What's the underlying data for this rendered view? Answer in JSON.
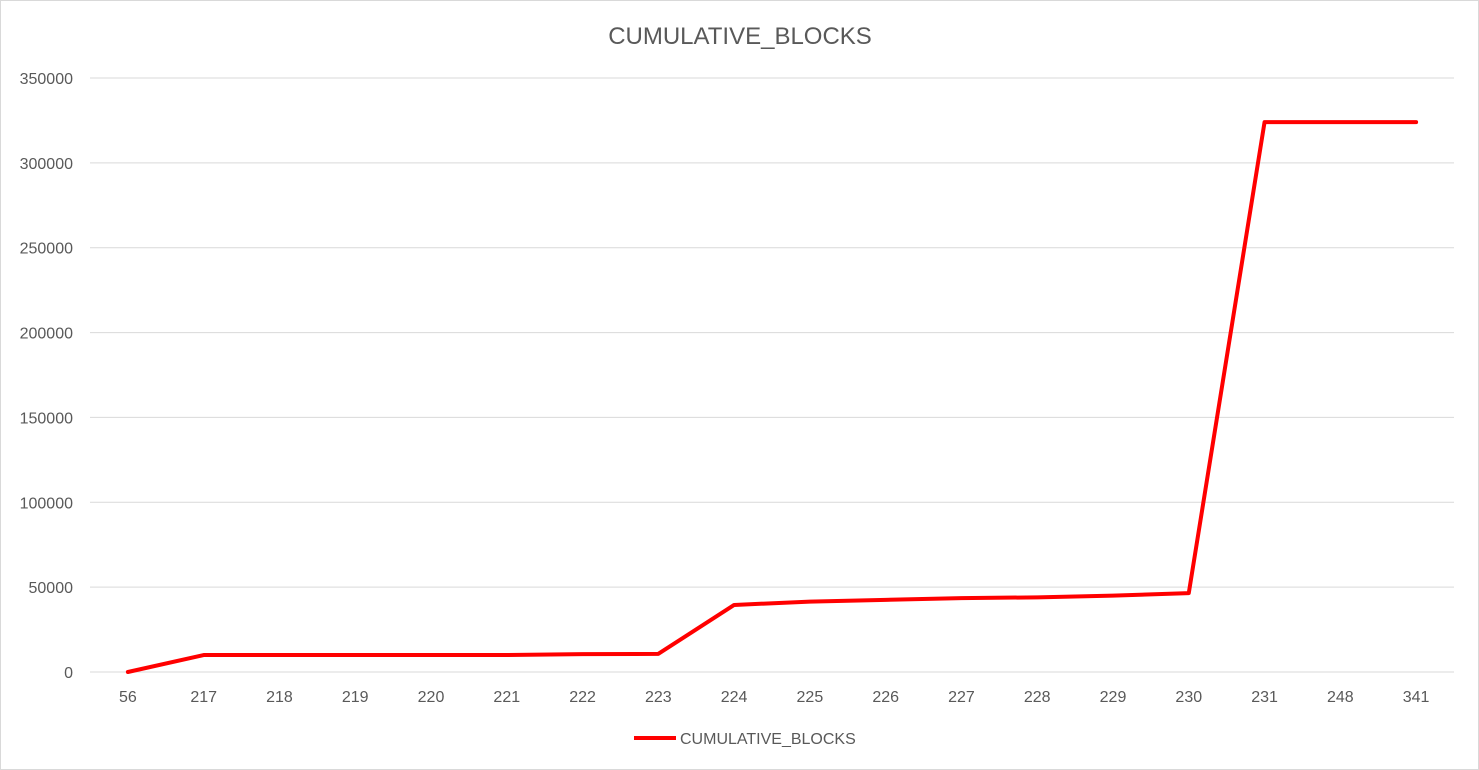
{
  "chart_data": {
    "type": "line",
    "title": "CUMULATIVE_BLOCKS",
    "xlabel": "",
    "ylabel": "",
    "categories": [
      "56",
      "217",
      "218",
      "219",
      "220",
      "221",
      "222",
      "223",
      "224",
      "225",
      "226",
      "227",
      "228",
      "229",
      "230",
      "231",
      "248",
      "341"
    ],
    "series": [
      {
        "name": "CUMULATIVE_BLOCKS",
        "color": "#ff0000",
        "values": [
          0,
          10000,
          10000,
          10000,
          10000,
          10000,
          10500,
          10700,
          39500,
          41500,
          42500,
          43500,
          44000,
          45000,
          46500,
          324000,
          324000,
          324000
        ]
      }
    ],
    "ylim": [
      0,
      350000
    ],
    "yticks": [
      "0",
      "50000",
      "100000",
      "150000",
      "200000",
      "250000",
      "300000",
      "350000"
    ],
    "grid": true,
    "legend_position": "bottom"
  }
}
